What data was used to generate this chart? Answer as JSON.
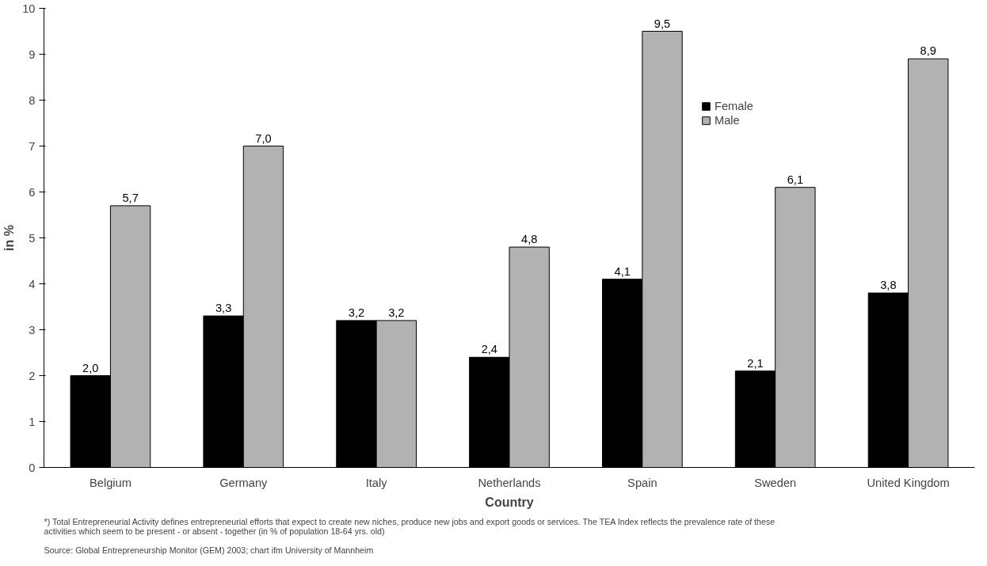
{
  "chart_data": {
    "type": "bar",
    "xlabel": "Country",
    "ylabel": "in %",
    "categories": [
      "Belgium",
      "Germany",
      "Italy",
      "Netherlands",
      "Spain",
      "Sweden",
      "United Kingdom"
    ],
    "series": [
      {
        "name": "Female",
        "color": "#000000",
        "values": [
          2.0,
          3.3,
          3.2,
          2.4,
          4.1,
          2.1,
          3.8
        ],
        "value_labels": [
          "2,0",
          "3,3",
          "3,2",
          "2,4",
          "4,1",
          "2,1",
          "3,8"
        ]
      },
      {
        "name": "Male",
        "color": "#b2b2b2",
        "values": [
          5.7,
          7.0,
          3.2,
          4.8,
          9.5,
          6.1,
          8.9
        ],
        "value_labels": [
          "5,7",
          "7,0",
          "3,2",
          "4,8",
          "9,5",
          "6,1",
          "8,9"
        ]
      }
    ],
    "ylim": [
      0,
      10
    ],
    "yticks": [
      0,
      1,
      2,
      3,
      4,
      5,
      6,
      7,
      8,
      9,
      10
    ],
    "grid": false,
    "legend": "top right",
    "annotations": [
      "*) Total Entrepreneurial Activity defines entrepreneurial efforts that expect to create new niches, produce new jobs and export goods or services. The TEA Index reflects the prevalence rate of these activities which seem to be present - or absent - together (in % of population 18-64 yrs. old)",
      "Source: Global Entrepreneurship Monitor (GEM) 2003; chart ifm University of Mannheim"
    ]
  }
}
